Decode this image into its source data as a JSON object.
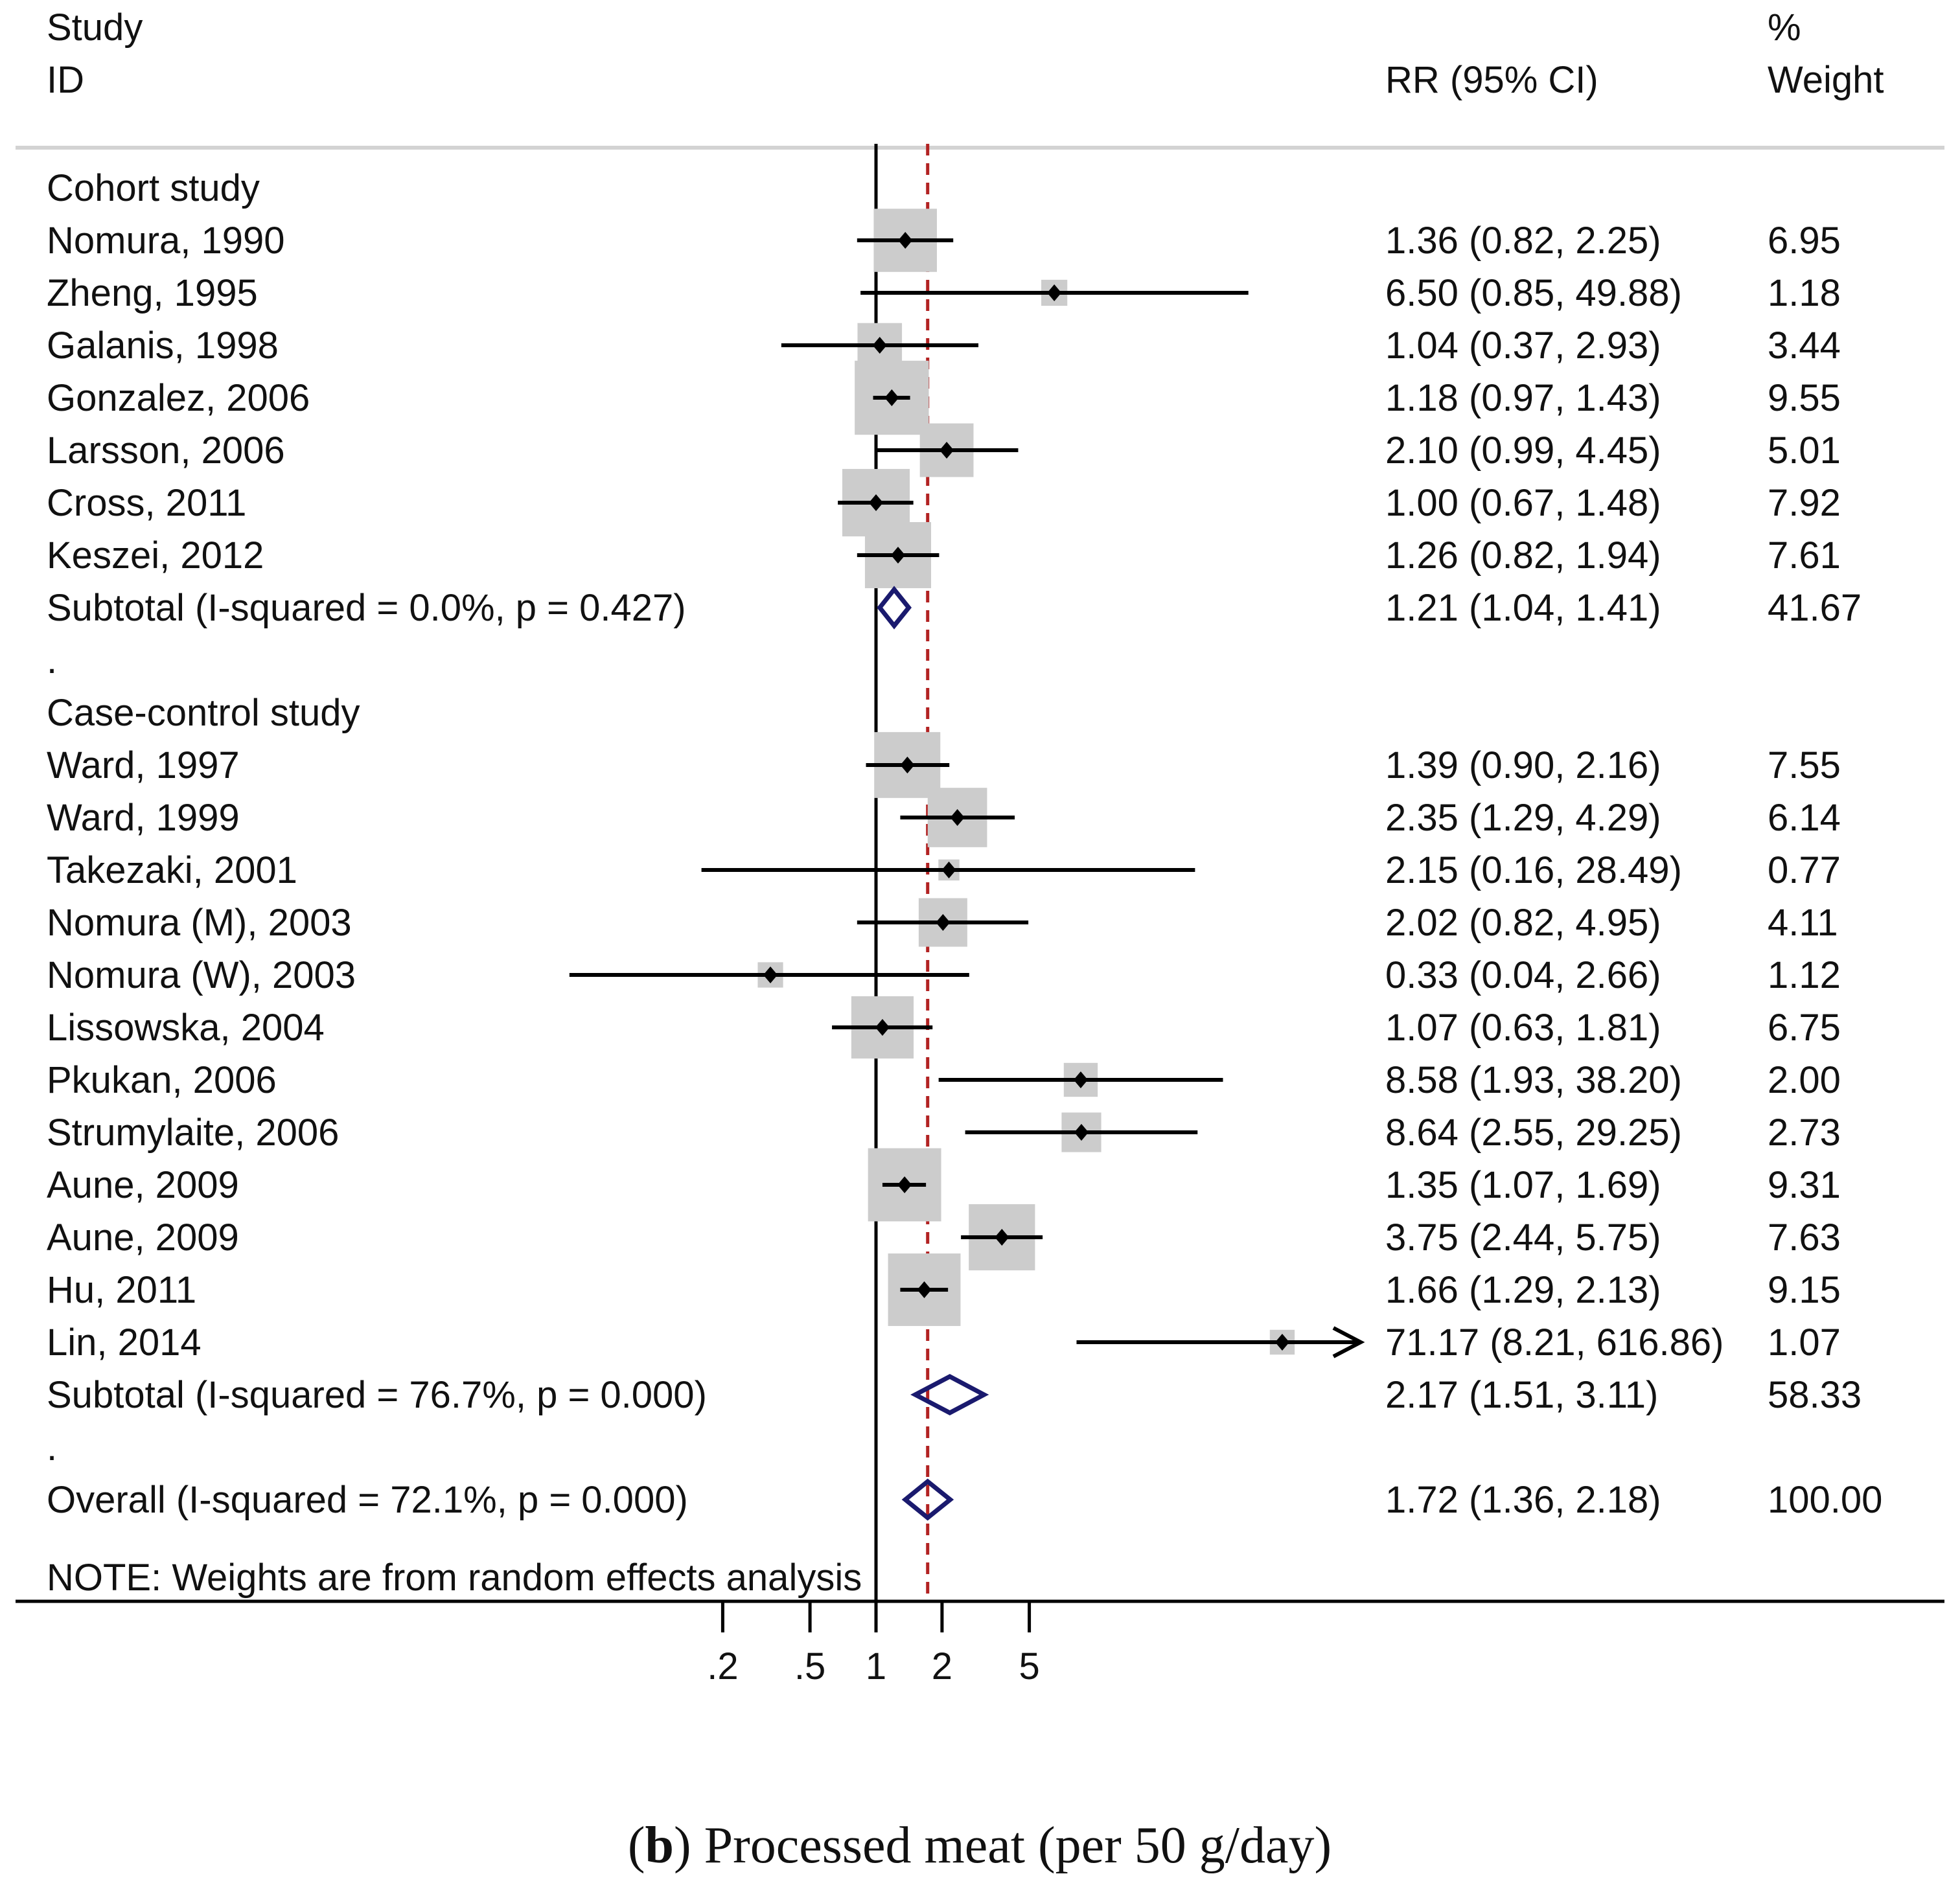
{
  "chart_data": {
    "type": "forest",
    "header": {
      "study": "Study",
      "id": "ID",
      "rr": "RR (95% CI)",
      "pct": "%",
      "weight": "Weight"
    },
    "x_scale": "log",
    "xlim": [
      0.1,
      10
    ],
    "xticks": [
      {
        "value": 0.2,
        "label": ".2"
      },
      {
        "value": 0.5,
        "label": ".5"
      },
      {
        "value": 1,
        "label": "1"
      },
      {
        "value": 2,
        "label": "2"
      },
      {
        "value": 5,
        "label": "5"
      }
    ],
    "null_line": 1,
    "overall_line": 1.72,
    "colors": {
      "box": "#cccccc",
      "line": "#000000",
      "diamond": "#1a1a6e",
      "overall_line": "#b22222",
      "header_rule": "#d3d3d3"
    },
    "rows": [
      {
        "kind": "group",
        "label": "Cohort study"
      },
      {
        "kind": "study",
        "label": "Nomura, 1990",
        "rr": 1.36,
        "lo": 0.82,
        "hi": 2.25,
        "rr_text": "1.36 (0.82, 2.25)",
        "weight": 6.95,
        "weight_text": "6.95"
      },
      {
        "kind": "study",
        "label": "Zheng, 1995",
        "rr": 6.5,
        "lo": 0.85,
        "hi": 49.88,
        "rr_text": "6.50 (0.85, 49.88)",
        "weight": 1.18,
        "weight_text": "1.18"
      },
      {
        "kind": "study",
        "label": "Galanis, 1998",
        "rr": 1.04,
        "lo": 0.37,
        "hi": 2.93,
        "rr_text": "1.04 (0.37, 2.93)",
        "weight": 3.44,
        "weight_text": "3.44"
      },
      {
        "kind": "study",
        "label": "Gonzalez, 2006",
        "rr": 1.18,
        "lo": 0.97,
        "hi": 1.43,
        "rr_text": "1.18 (0.97, 1.43)",
        "weight": 9.55,
        "weight_text": "9.55"
      },
      {
        "kind": "study",
        "label": "Larsson, 2006",
        "rr": 2.1,
        "lo": 0.99,
        "hi": 4.45,
        "rr_text": "2.10 (0.99, 4.45)",
        "weight": 5.01,
        "weight_text": "5.01"
      },
      {
        "kind": "study",
        "label": "Cross, 2011",
        "rr": 1.0,
        "lo": 0.67,
        "hi": 1.48,
        "rr_text": "1.00 (0.67, 1.48)",
        "weight": 7.92,
        "weight_text": "7.92"
      },
      {
        "kind": "study",
        "label": "Keszei, 2012",
        "rr": 1.26,
        "lo": 0.82,
        "hi": 1.94,
        "rr_text": "1.26 (0.82, 1.94)",
        "weight": 7.61,
        "weight_text": "7.61"
      },
      {
        "kind": "subtotal",
        "label": "Subtotal  (I-squared = 0.0%, p = 0.427)",
        "rr": 1.21,
        "lo": 1.04,
        "hi": 1.41,
        "rr_text": "1.21 (1.04, 1.41)",
        "weight": 41.67,
        "weight_text": "41.67"
      },
      {
        "kind": "spacer",
        "label": "."
      },
      {
        "kind": "group",
        "label": "Case-control study"
      },
      {
        "kind": "study",
        "label": "Ward, 1997",
        "rr": 1.39,
        "lo": 0.9,
        "hi": 2.16,
        "rr_text": "1.39 (0.90, 2.16)",
        "weight": 7.55,
        "weight_text": "7.55"
      },
      {
        "kind": "study",
        "label": "Ward, 1999",
        "rr": 2.35,
        "lo": 1.29,
        "hi": 4.29,
        "rr_text": "2.35 (1.29, 4.29)",
        "weight": 6.14,
        "weight_text": "6.14"
      },
      {
        "kind": "study",
        "label": "Takezaki, 2001",
        "rr": 2.15,
        "lo": 0.16,
        "hi": 28.49,
        "rr_text": "2.15 (0.16, 28.49)",
        "weight": 0.77,
        "weight_text": "0.77"
      },
      {
        "kind": "study",
        "label": "Nomura (M), 2003",
        "rr": 2.02,
        "lo": 0.82,
        "hi": 4.95,
        "rr_text": "2.02 (0.82, 4.95)",
        "weight": 4.11,
        "weight_text": "4.11"
      },
      {
        "kind": "study",
        "label": "Nomura (W), 2003",
        "rr": 0.33,
        "lo": 0.04,
        "hi": 2.66,
        "rr_text": "0.33 (0.04, 2.66)",
        "weight": 1.12,
        "weight_text": "1.12"
      },
      {
        "kind": "study",
        "label": "Lissowska, 2004",
        "rr": 1.07,
        "lo": 0.63,
        "hi": 1.81,
        "rr_text": "1.07 (0.63, 1.81)",
        "weight": 6.75,
        "weight_text": "6.75"
      },
      {
        "kind": "study",
        "label": "Pkukan, 2006",
        "rr": 8.58,
        "lo": 1.93,
        "hi": 38.2,
        "rr_text": "8.58 (1.93, 38.20)",
        "weight": 2.0,
        "weight_text": "2.00"
      },
      {
        "kind": "study",
        "label": "Strumylaite, 2006",
        "rr": 8.64,
        "lo": 2.55,
        "hi": 29.25,
        "rr_text": "8.64 (2.55, 29.25)",
        "weight": 2.73,
        "weight_text": "2.73"
      },
      {
        "kind": "study",
        "label": "Aune, 2009",
        "rr": 1.35,
        "lo": 1.07,
        "hi": 1.69,
        "rr_text": "1.35 (1.07, 1.69)",
        "weight": 9.31,
        "weight_text": "9.31"
      },
      {
        "kind": "study",
        "label": "Aune, 2009",
        "rr": 3.75,
        "lo": 2.44,
        "hi": 5.75,
        "rr_text": "3.75 (2.44, 5.75)",
        "weight": 7.63,
        "weight_text": "7.63"
      },
      {
        "kind": "study",
        "label": "Hu, 2011",
        "rr": 1.66,
        "lo": 1.29,
        "hi": 2.13,
        "rr_text": "1.66 (1.29, 2.13)",
        "weight": 9.15,
        "weight_text": "9.15"
      },
      {
        "kind": "study",
        "label": "Lin, 2014",
        "rr": 71.17,
        "lo": 8.21,
        "hi": 616.86,
        "rr_text": "71.17 (8.21, 616.86)",
        "weight": 1.07,
        "weight_text": "1.07"
      },
      {
        "kind": "subtotal",
        "label": "Subtotal  (I-squared = 76.7%, p = 0.000)",
        "rr": 2.17,
        "lo": 1.51,
        "hi": 3.11,
        "rr_text": "2.17 (1.51, 3.11)",
        "weight": 58.33,
        "weight_text": "58.33"
      },
      {
        "kind": "spacer",
        "label": "."
      },
      {
        "kind": "overall",
        "label": "Overall  (I-squared = 72.1%, p = 0.000)",
        "rr": 1.72,
        "lo": 1.36,
        "hi": 2.18,
        "rr_text": "1.72 (1.36, 2.18)",
        "weight": 100.0,
        "weight_text": "100.00"
      }
    ],
    "note": "NOTE: Weights are from random effects analysis",
    "caption_letter": "b",
    "caption_text": " Processed meat (per 50 g/day)"
  }
}
